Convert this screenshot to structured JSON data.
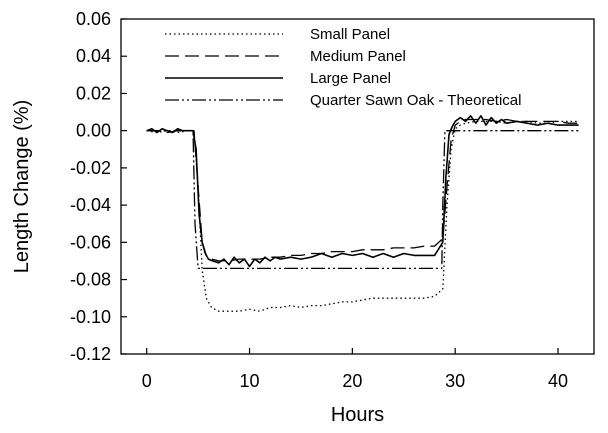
{
  "chart_data": {
    "type": "line",
    "title": "",
    "xlabel": "Hours",
    "ylabel": "Length Change (%)",
    "xlim": [
      -2.5,
      43.5
    ],
    "ylim": [
      -0.12,
      0.06
    ],
    "x_ticks": [
      0,
      10,
      20,
      30,
      40
    ],
    "y_ticks": [
      0.06,
      0.04,
      0.02,
      0.0,
      -0.02,
      -0.04,
      -0.06,
      -0.08,
      -0.1,
      -0.12
    ],
    "y_tick_labels": [
      "0.06",
      "0.04",
      "0.02",
      "0.00",
      "-0.02",
      "-0.04",
      "-0.06",
      "-0.08",
      "-0.10",
      "-0.12"
    ],
    "grid": false,
    "legend_position": "top",
    "series": [
      {
        "name": "Small Panel",
        "style": "dotted",
        "color": "#000000",
        "x": [
          0,
          1,
          2,
          3,
          4,
          4.6,
          5.0,
          5.4,
          5.8,
          6.3,
          7,
          8,
          9,
          10,
          11,
          12,
          13,
          14,
          15,
          16,
          17,
          18,
          19,
          20,
          21,
          22,
          23,
          24,
          25,
          26,
          27,
          28,
          28.8,
          29.2,
          29.6,
          30,
          30.5,
          31,
          32,
          33,
          34,
          35,
          36,
          37,
          38,
          39,
          40,
          41,
          42
        ],
        "y": [
          0.0,
          -0.001,
          0.0,
          -0.001,
          0.0,
          0.0,
          -0.03,
          -0.075,
          -0.09,
          -0.095,
          -0.097,
          -0.097,
          -0.097,
          -0.096,
          -0.097,
          -0.095,
          -0.095,
          -0.094,
          -0.095,
          -0.094,
          -0.094,
          -0.093,
          -0.092,
          -0.092,
          -0.091,
          -0.09,
          -0.09,
          -0.09,
          -0.09,
          -0.09,
          -0.09,
          -0.089,
          -0.085,
          -0.04,
          -0.01,
          0.001,
          0.003,
          0.004,
          0.005,
          0.005,
          0.005,
          0.004,
          0.005,
          0.005,
          0.004,
          0.004,
          0.005,
          0.005,
          0.005
        ]
      },
      {
        "name": "Medium Panel",
        "style": "dashed",
        "color": "#000000",
        "x": [
          0,
          1,
          2,
          3,
          4,
          4.6,
          5.0,
          5.4,
          5.8,
          6.3,
          7,
          8,
          9,
          10,
          11,
          12,
          13,
          14,
          15,
          16,
          17,
          18,
          19,
          20,
          21,
          22,
          23,
          24,
          25,
          26,
          27,
          28,
          28.8,
          29.2,
          29.6,
          30,
          30.5,
          31,
          32,
          33,
          34,
          35,
          36,
          37,
          38,
          39,
          40,
          41,
          42
        ],
        "y": [
          0.0,
          0.0,
          -0.001,
          0.0,
          0.0,
          0.0,
          -0.03,
          -0.06,
          -0.067,
          -0.069,
          -0.07,
          -0.07,
          -0.069,
          -0.069,
          -0.069,
          -0.068,
          -0.068,
          -0.067,
          -0.067,
          -0.066,
          -0.066,
          -0.065,
          -0.065,
          -0.065,
          -0.064,
          -0.064,
          -0.064,
          -0.063,
          -0.063,
          -0.063,
          -0.062,
          -0.062,
          -0.058,
          -0.03,
          -0.005,
          0.003,
          0.005,
          0.006,
          0.006,
          0.006,
          0.005,
          0.006,
          0.005,
          0.005,
          0.005,
          0.005,
          0.005,
          0.004,
          0.004
        ]
      },
      {
        "name": "Large Panel",
        "style": "solid",
        "color": "#000000",
        "x": [
          0,
          0.5,
          1,
          1.5,
          2,
          2.5,
          3,
          3.5,
          4,
          4.5,
          4.8,
          5.1,
          5.4,
          5.7,
          6.0,
          6.4,
          7,
          7.5,
          8,
          8.5,
          9,
          9.5,
          10,
          10.5,
          11,
          11.5,
          12,
          12.5,
          13,
          14,
          15,
          16,
          17,
          18,
          19,
          20,
          21,
          22,
          23,
          24,
          25,
          26,
          27,
          28,
          28.8,
          29.1,
          29.4,
          29.7,
          30,
          30.5,
          31,
          31.5,
          32,
          32.5,
          33,
          33.5,
          34,
          34.5,
          35,
          36,
          37,
          38,
          39,
          40,
          41,
          42
        ],
        "y": [
          0.0,
          0.001,
          -0.001,
          0.001,
          0.0,
          -0.001,
          0.001,
          0.0,
          0.0,
          0.0,
          -0.01,
          -0.045,
          -0.06,
          -0.066,
          -0.069,
          -0.07,
          -0.071,
          -0.069,
          -0.072,
          -0.068,
          -0.071,
          -0.069,
          -0.073,
          -0.069,
          -0.071,
          -0.068,
          -0.07,
          -0.068,
          -0.069,
          -0.068,
          -0.069,
          -0.068,
          -0.066,
          -0.068,
          -0.066,
          -0.067,
          -0.066,
          -0.068,
          -0.066,
          -0.068,
          -0.066,
          -0.067,
          -0.067,
          -0.067,
          -0.06,
          -0.025,
          -0.002,
          0.002,
          0.005,
          0.007,
          0.005,
          0.008,
          0.004,
          0.008,
          0.003,
          0.007,
          0.004,
          0.006,
          0.004,
          0.005,
          0.004,
          0.003,
          0.004,
          0.003,
          0.003,
          0.003
        ]
      },
      {
        "name": "Quarter Sawn Oak - Theoretical",
        "style": "dashdotdot",
        "color": "#000000",
        "x": [
          0,
          4.5,
          4.7,
          5.0,
          6,
          10,
          15,
          20,
          25,
          28.7,
          28.8,
          29.0,
          30,
          35,
          40,
          42
        ],
        "y": [
          0.0,
          0.0,
          -0.05,
          -0.074,
          -0.074,
          -0.074,
          -0.074,
          -0.074,
          -0.074,
          -0.074,
          -0.04,
          0.0,
          0.0,
          0.0,
          0.0,
          0.0
        ]
      }
    ]
  }
}
